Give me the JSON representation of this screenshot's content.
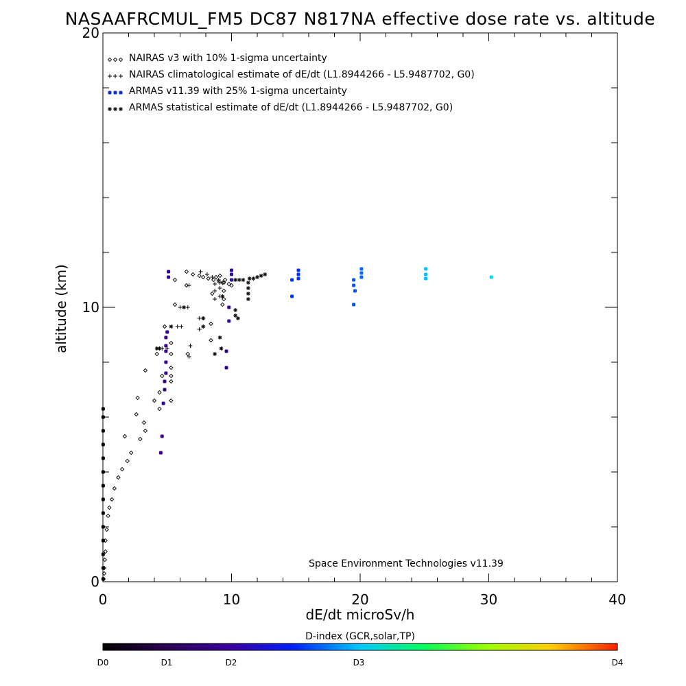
{
  "chart_data": {
    "type": "scatter",
    "title": "NASAAFRCMUL_FM5 DC87 N817NA effective dose rate vs. altitude",
    "xlabel": "dE/dt microSv/h",
    "ylabel": "altitude (km)",
    "xlim": [
      0,
      40
    ],
    "ylim": [
      0,
      20
    ],
    "x_ticks": [
      "0",
      "10",
      "20",
      "30",
      "40"
    ],
    "y_ticks": [
      "0",
      "10",
      "20"
    ],
    "grid": false,
    "legend_position": "top-left",
    "credit": "Space Environment Technologies v11.39",
    "colorbar": {
      "title": "D-index (GCR,solar,TP)",
      "labels": [
        {
          "text": "D0",
          "value": 0
        },
        {
          "text": "D1",
          "value": 1
        },
        {
          "text": "D2",
          "value": 2
        },
        {
          "text": "D3",
          "value": 3
        },
        {
          "text": "D4",
          "value": 4
        }
      ],
      "stops": [
        "#000000",
        "#3a0068",
        "#0010ff",
        "#00c8ff",
        "#00ff40",
        "#ffff00",
        "#ff2000"
      ]
    },
    "series": [
      {
        "name": "NAIRAS v3 with 10% 1-sigma uncertainty",
        "marker": "diamond",
        "color": "#000000",
        "points": [
          [
            0.05,
            0.1
          ],
          [
            0.1,
            0.3
          ],
          [
            0.1,
            0.5
          ],
          [
            0.15,
            0.8
          ],
          [
            0.2,
            1.1
          ],
          [
            0.2,
            1.5
          ],
          [
            0.3,
            1.9
          ],
          [
            0.4,
            2.4
          ],
          [
            0.5,
            2.7
          ],
          [
            0.7,
            3.0
          ],
          [
            0.9,
            3.4
          ],
          [
            1.2,
            3.8
          ],
          [
            1.5,
            4.1
          ],
          [
            1.9,
            4.4
          ],
          [
            2.2,
            4.7
          ],
          [
            2.9,
            5.2
          ],
          [
            3.3,
            5.5
          ],
          [
            1.7,
            5.3
          ],
          [
            2.6,
            6.1
          ],
          [
            3.2,
            5.8
          ],
          [
            2.7,
            6.7
          ],
          [
            4.0,
            6.6
          ],
          [
            4.4,
            6.9
          ],
          [
            4.4,
            6.3
          ],
          [
            5.3,
            6.6
          ],
          [
            5.3,
            7.3
          ],
          [
            4.6,
            7.5
          ],
          [
            3.3,
            7.7
          ],
          [
            5.3,
            7.5
          ],
          [
            5.3,
            7.8
          ],
          [
            4.2,
            8.3
          ],
          [
            5.3,
            8.3
          ],
          [
            5.3,
            8.7
          ],
          [
            6.6,
            8.3
          ],
          [
            8.4,
            8.8
          ],
          [
            8.4,
            9.4
          ],
          [
            5.6,
            10.1
          ],
          [
            6.5,
            10.8
          ],
          [
            4.8,
            9.3
          ],
          [
            5.6,
            11.0
          ],
          [
            8.5,
            10.5
          ],
          [
            9.3,
            10.1
          ],
          [
            9.4,
            10.3
          ],
          [
            9.3,
            10.9
          ],
          [
            9.4,
            10.6
          ],
          [
            6.5,
            11.3
          ],
          [
            7.0,
            11.2
          ],
          [
            7.5,
            11.15
          ],
          [
            7.8,
            11.1
          ],
          [
            8.2,
            11.05
          ],
          [
            8.6,
            11.0
          ],
          [
            9.0,
            10.95
          ],
          [
            9.4,
            10.9
          ],
          [
            9.8,
            10.85
          ],
          [
            10.0,
            10.8
          ],
          [
            8.8,
            11.1
          ],
          [
            9.1,
            11.15
          ],
          [
            9.5,
            11.0
          ]
        ]
      },
      {
        "name": "NAIRAS climatological estimate of dE/dt (L1.8944266 - L5.9487702, G0)",
        "marker": "plus",
        "color": "#000000",
        "points": [
          [
            4.6,
            8.5
          ],
          [
            5.0,
            8.5
          ],
          [
            5.8,
            9.3
          ],
          [
            6.1,
            9.3
          ],
          [
            6.8,
            8.6
          ],
          [
            6.7,
            8.2
          ],
          [
            6.0,
            10.0
          ],
          [
            6.6,
            10.0
          ],
          [
            6.7,
            10.8
          ],
          [
            7.5,
            9.6
          ],
          [
            7.5,
            9.2
          ],
          [
            7.8,
            9.6
          ],
          [
            8.7,
            10.3
          ],
          [
            8.7,
            10.6
          ],
          [
            8.7,
            10.85
          ],
          [
            9.1,
            10.4
          ],
          [
            9.1,
            10.7
          ],
          [
            9.1,
            10.9
          ],
          [
            7.6,
            11.3
          ],
          [
            8.1,
            11.2
          ],
          [
            8.5,
            11.1
          ],
          [
            9.0,
            11.0
          ]
        ]
      },
      {
        "name": "ARMAS v11.39 with 25% 1-sigma uncertainty",
        "marker": "dot",
        "color": "#1520d0",
        "points": [
          [
            0.02,
            0.1,
            0.0
          ],
          [
            0.02,
            0.5,
            0.0
          ],
          [
            0.02,
            1.0,
            0.0
          ],
          [
            0.02,
            1.5,
            0.0
          ],
          [
            0.02,
            2.0,
            0.0
          ],
          [
            0.02,
            2.5,
            0.0
          ],
          [
            0.02,
            3.0,
            0.0
          ],
          [
            0.02,
            3.5,
            0.0
          ],
          [
            0.02,
            4.0,
            0.0
          ],
          [
            0.02,
            4.5,
            0.0
          ],
          [
            0.02,
            5.0,
            0.0
          ],
          [
            0.02,
            5.5,
            0.0
          ],
          [
            0.02,
            6.0,
            0.0
          ],
          [
            0.02,
            6.3,
            0.0
          ],
          [
            4.5,
            4.7,
            0.9
          ],
          [
            4.6,
            5.3,
            0.9
          ],
          [
            4.7,
            6.5,
            0.9
          ],
          [
            4.8,
            7.0,
            0.9
          ],
          [
            4.8,
            7.3,
            0.9
          ],
          [
            4.9,
            7.6,
            0.9
          ],
          [
            4.9,
            8.0,
            0.9
          ],
          [
            4.9,
            8.4,
            0.9
          ],
          [
            4.9,
            8.6,
            0.9
          ],
          [
            4.9,
            8.9,
            0.9
          ],
          [
            5.0,
            9.1,
            0.9
          ],
          [
            5.1,
            11.1,
            0.95
          ],
          [
            5.1,
            11.3,
            0.95
          ],
          [
            9.6,
            7.8,
            0.9
          ],
          [
            9.6,
            8.4,
            0.9
          ],
          [
            9.8,
            9.5,
            0.9
          ],
          [
            9.8,
            10.0,
            0.95
          ],
          [
            10.0,
            11.0,
            1.1
          ],
          [
            10.0,
            11.2,
            1.1
          ],
          [
            10.0,
            11.35,
            1.1
          ],
          [
            14.7,
            10.4,
            1.6
          ],
          [
            14.7,
            11.0,
            1.6
          ],
          [
            15.2,
            11.05,
            1.6
          ],
          [
            15.2,
            11.2,
            1.6
          ],
          [
            15.2,
            11.35,
            1.6
          ],
          [
            19.5,
            10.1,
            1.8
          ],
          [
            19.6,
            10.6,
            1.8
          ],
          [
            19.5,
            10.8,
            1.8
          ],
          [
            19.5,
            11.0,
            1.8
          ],
          [
            20.1,
            11.1,
            1.9
          ],
          [
            20.1,
            11.25,
            1.9
          ],
          [
            20.1,
            11.4,
            1.9
          ],
          [
            25.1,
            11.05,
            2.5
          ],
          [
            25.1,
            11.2,
            2.5
          ],
          [
            25.1,
            11.4,
            2.5
          ],
          [
            30.2,
            11.1,
            2.8
          ]
        ]
      },
      {
        "name": "ARMAS statistical estimate of dE/dt (L1.8944266 - L5.9487702, G0)",
        "marker": "asterisk",
        "color": "#000000",
        "points": [
          [
            4.2,
            8.5
          ],
          [
            4.4,
            8.5
          ],
          [
            5.3,
            9.3
          ],
          [
            6.3,
            10.0
          ],
          [
            7.8,
            9.3
          ],
          [
            7.8,
            9.6
          ],
          [
            8.7,
            8.3
          ],
          [
            9.2,
            8.5
          ],
          [
            9.1,
            8.9
          ],
          [
            9.3,
            10.4
          ],
          [
            10.3,
            9.7
          ],
          [
            10.3,
            9.9
          ],
          [
            10.5,
            9.6
          ],
          [
            11.3,
            10.3
          ],
          [
            11.3,
            10.5
          ],
          [
            11.3,
            10.7
          ],
          [
            11.3,
            10.9
          ],
          [
            11.4,
            11.05
          ],
          [
            11.7,
            11.05
          ],
          [
            12.0,
            11.1
          ],
          [
            12.3,
            11.15
          ],
          [
            12.6,
            11.2
          ],
          [
            10.3,
            11.0
          ],
          [
            10.6,
            11.0
          ],
          [
            10.9,
            11.0
          ]
        ]
      }
    ]
  }
}
